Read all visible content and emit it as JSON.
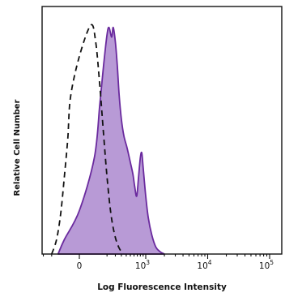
{
  "chart_data": {
    "type": "area",
    "title": "",
    "xlabel": "Log Fluorescence Intensity",
    "ylabel": "Relative Cell Number",
    "x_scale": "biexponential",
    "xlim": [
      -200,
      100000
    ],
    "ylim": [
      0,
      100
    ],
    "ticks": [
      {
        "value": 0,
        "label": "0",
        "base": "0",
        "exp": ""
      },
      {
        "value": 1000,
        "label": "10^3",
        "base": "10",
        "exp": "3"
      },
      {
        "value": 10000,
        "label": "10^4",
        "base": "10",
        "exp": "4"
      },
      {
        "value": 100000,
        "label": "10^5",
        "base": "10",
        "exp": "5"
      }
    ],
    "legend": "none",
    "grid": false,
    "series": [
      {
        "style": "dashed-outline",
        "color": "#111111",
        "x": [
          -100,
          -60,
          -35,
          -20,
          -10,
          -5,
          0,
          10,
          25,
          45,
          70,
          100,
          140,
          190,
          250,
          330
        ],
        "y": [
          0,
          6,
          17,
          32,
          48,
          65,
          82,
          95,
          88,
          70,
          50,
          32,
          17,
          8,
          3,
          0
        ]
      },
      {
        "style": "filled",
        "color": "#6a2a9e",
        "fill": "#b89ad6",
        "x": [
          -50,
          -20,
          0,
          20,
          45,
          70,
          100,
          120,
          150,
          170,
          200,
          230,
          260,
          300,
          350,
          420,
          500,
          570,
          620,
          680,
          740,
          800,
          850,
          900,
          1000,
          1100,
          1250,
          1450,
          1700,
          2000
        ],
        "y": [
          0,
          6,
          18,
          40,
          62,
          78,
          91,
          94,
          90,
          94,
          88,
          78,
          66,
          56,
          49,
          44,
          38,
          33,
          28,
          24,
          32,
          40,
          42,
          36,
          24,
          15,
          8,
          3,
          1,
          0
        ]
      }
    ]
  }
}
